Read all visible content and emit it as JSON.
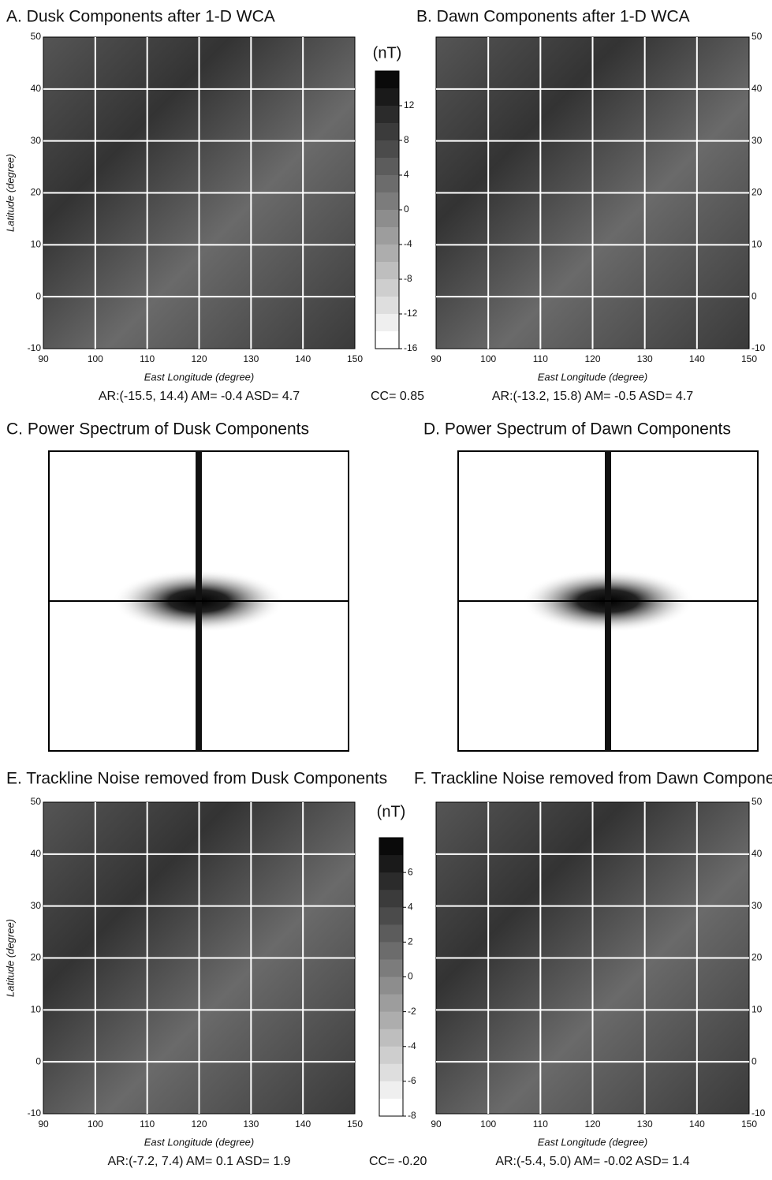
{
  "panel_a": {
    "title": "A. Dusk Components after 1-D WCA",
    "xlabel": "East Longitude (degree)",
    "ylabel": "Latitude (degree)",
    "xticks": [
      90,
      100,
      110,
      120,
      130,
      140,
      150
    ],
    "yticks": [
      -10,
      0,
      10,
      20,
      30,
      40,
      50
    ],
    "stats": "AR:(-15.5, 14.4) AM= -0.4 ASD= 4.7"
  },
  "panel_b": {
    "title": "B. Dawn Components after 1-D WCA",
    "xlabel": "East Longitude (degree)",
    "xticks": [
      90,
      100,
      110,
      120,
      130,
      140,
      150
    ],
    "yticks": [
      -10,
      0,
      10,
      20,
      30,
      40,
      50
    ],
    "stats": "AR:(-13.2, 15.8)  AM= -0.5  ASD= 4.7"
  },
  "panel_c": {
    "title": "C. Power Spectrum of Dusk Components"
  },
  "panel_d": {
    "title": "D. Power Spectrum of Dawn Components"
  },
  "panel_e": {
    "title": "E. Trackline Noise removed from Dusk Components",
    "xlabel": "East Longitude (degree)",
    "ylabel": "Latitude (degree)",
    "xticks": [
      90,
      100,
      110,
      120,
      130,
      140,
      150
    ],
    "yticks": [
      -10,
      0,
      10,
      20,
      30,
      40,
      50
    ],
    "stats": "AR:(-7.2, 7.4)  AM= 0.1  ASD= 1.9"
  },
  "panel_f": {
    "title": "F. Trackline Noise removed from Dawn Components",
    "xlabel": "East Longitude (degree)",
    "xticks": [
      90,
      100,
      110,
      120,
      130,
      140,
      150
    ],
    "yticks": [
      -10,
      0,
      10,
      20,
      30,
      40,
      50
    ],
    "stats": "AR:(-5.4, 5.0)  AM= -0.02  ASD= 1.4"
  },
  "colorbar_1": {
    "unit": "(nT)",
    "ticks": [
      12,
      8,
      4,
      0,
      -4,
      -8,
      -12,
      -16
    ]
  },
  "colorbar_2": {
    "unit": "(nT)",
    "ticks": [
      6,
      4,
      2,
      0,
      -2,
      -4,
      -6,
      -8
    ]
  },
  "cc_1": "CC= 0.85",
  "cc_2": "CC= -0.20"
}
